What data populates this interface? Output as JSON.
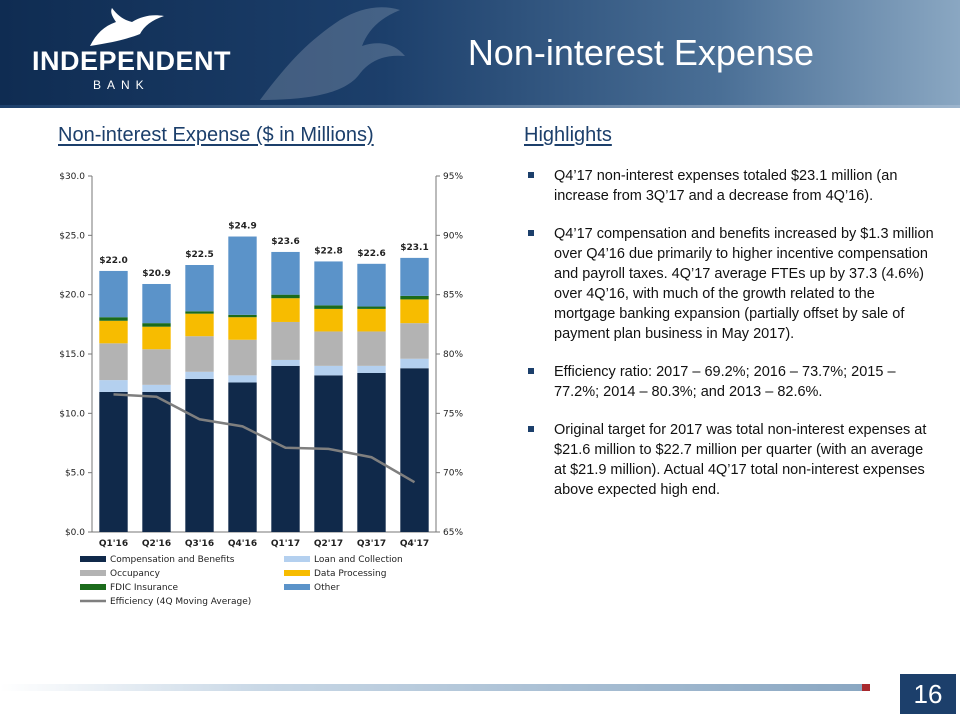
{
  "brand": {
    "name": "INDEPENDENT",
    "sub": "BANK"
  },
  "slide": {
    "title": "Non-interest Expense",
    "page_number": "16"
  },
  "left": {
    "heading": "Non-interest Expense ($ in Millions)"
  },
  "right": {
    "heading": "Highlights",
    "bullets": [
      "Q4’17 non-interest expenses totaled $23.1 million (an increase from 3Q’17 and a decrease from 4Q’16).",
      "Q4’17 compensation and benefits increased by $1.3 million over Q4’16 due primarily to higher incentive compensation and payroll taxes.  4Q’17 average FTEs up by 37.3 (4.6%) over 4Q’16, with much of the growth related to the mortgage banking expansion (partially offset by sale of payment plan business in May 2017).",
      "Efficiency ratio:  2017 – 69.2%; 2016 – 73.7%; 2015 – 77.2%; 2014 – 80.3%; and 2013 – 82.6%.",
      "Original target for 2017 was total non-interest expenses at $21.6 million to $22.7 million per quarter (with an average at $21.9 million).  Actual 4Q’17 total non-interest expenses above expected high end."
    ]
  },
  "colors": {
    "navy": "#1c3f6b",
    "comp": "#10294a",
    "loan": "#b4d0ef",
    "occ": "#b3b3b3",
    "dp": "#f7bc00",
    "fdic": "#1b6b1b",
    "other": "#5b93c9",
    "eff": "#7f7f7f",
    "accent_red": "#a8292e"
  },
  "chart_data": {
    "type": "bar",
    "stacked": true,
    "categories": [
      "Q1'16",
      "Q2'16",
      "Q3'16",
      "Q4'16",
      "Q1'17",
      "Q2'17",
      "Q3'17",
      "Q4'17"
    ],
    "series": [
      {
        "name": "Compensation and Benefits",
        "key": "comp",
        "values": [
          11.8,
          11.8,
          12.9,
          12.6,
          14.0,
          13.2,
          13.4,
          13.8
        ]
      },
      {
        "name": "Loan and Collection",
        "key": "loan",
        "values": [
          1.0,
          0.6,
          0.6,
          0.6,
          0.5,
          0.8,
          0.6,
          0.8
        ]
      },
      {
        "name": "Occupancy",
        "key": "occ",
        "values": [
          3.1,
          3.0,
          3.0,
          3.0,
          3.2,
          2.9,
          2.9,
          3.0
        ]
      },
      {
        "name": "Data Processing",
        "key": "dp",
        "values": [
          1.9,
          1.9,
          1.9,
          1.9,
          2.0,
          1.9,
          1.9,
          2.0
        ]
      },
      {
        "name": "FDIC Insurance",
        "key": "fdic",
        "values": [
          0.3,
          0.3,
          0.2,
          0.2,
          0.3,
          0.3,
          0.2,
          0.3
        ]
      },
      {
        "name": "Other",
        "key": "other",
        "values": [
          3.9,
          3.3,
          3.9,
          6.6,
          3.6,
          3.7,
          3.6,
          3.2
        ]
      }
    ],
    "totals": [
      "$22.0",
      "$20.9",
      "$22.5",
      "$24.9",
      "$23.6",
      "$22.8",
      "$22.6",
      "$23.1"
    ],
    "line": {
      "name": "Efficiency (4Q Moving Average)",
      "axis": "right",
      "values": [
        76.6,
        76.4,
        74.5,
        73.9,
        72.1,
        72.0,
        71.3,
        69.2
      ]
    },
    "y_left": {
      "min": 0,
      "max": 30,
      "ticks": [
        "$0.0",
        "$5.0",
        "$10.0",
        "$15.0",
        "$20.0",
        "$25.0",
        "$30.0"
      ]
    },
    "y_right": {
      "min": 65,
      "max": 95,
      "ticks": [
        "65%",
        "70%",
        "75%",
        "80%",
        "85%",
        "90%",
        "95%"
      ]
    },
    "legend_position": "bottom"
  }
}
